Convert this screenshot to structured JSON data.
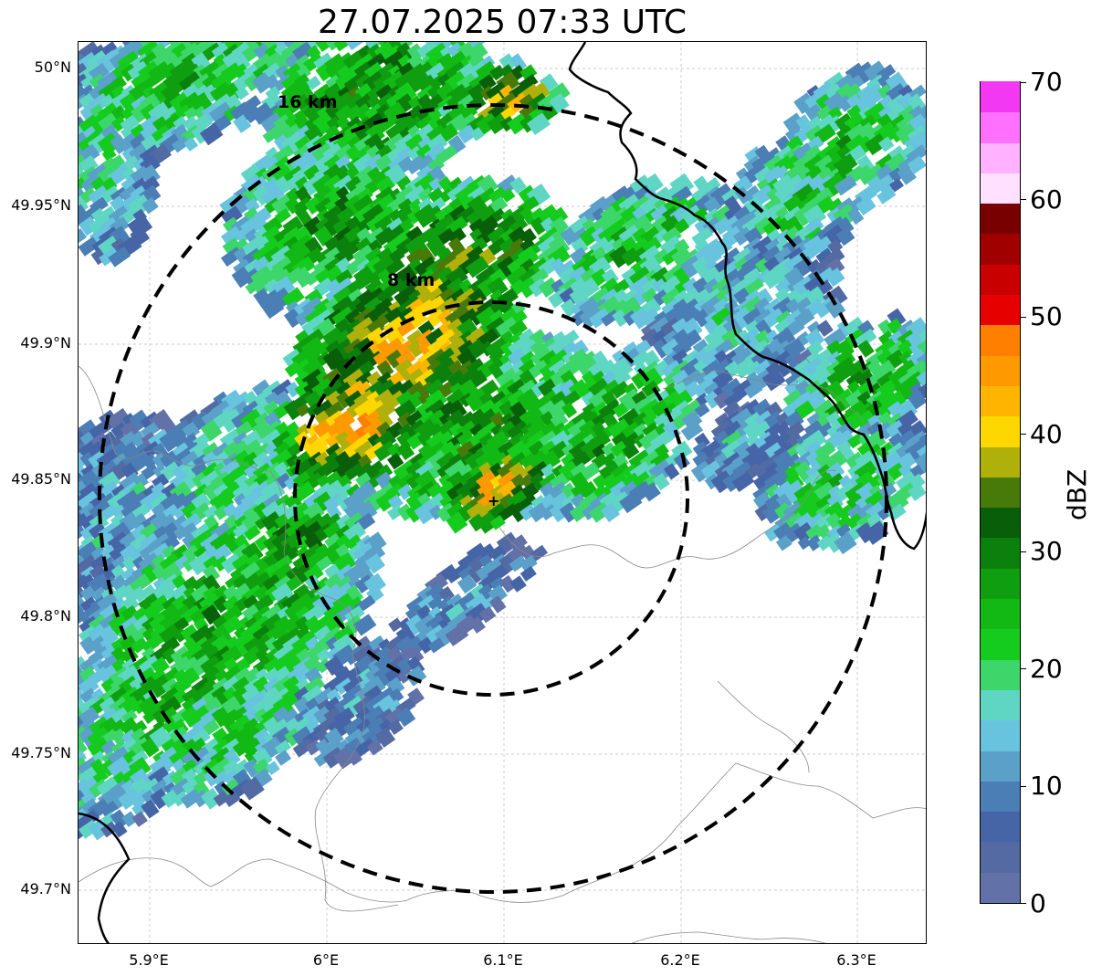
{
  "title": "27.07.2025 07:33 UTC",
  "map": {
    "lat_ticks": [
      "50°N",
      "49.95°N",
      "49.9°N",
      "49.85°N",
      "49.8°N",
      "49.75°N",
      "49.7°N"
    ],
    "lon_ticks": [
      "5.9°E",
      "6°E",
      "6.1°E",
      "6.2°E",
      "6.3°E"
    ],
    "ring_labels": [
      "16 km",
      "8 km"
    ],
    "radar_site": "+",
    "gridlines": true
  },
  "colorbar": {
    "label": "dBZ",
    "tick_labels": [
      "0",
      "10",
      "20",
      "30",
      "40",
      "50",
      "60",
      "70"
    ],
    "colors": [
      "#6271a8",
      "#536aa3",
      "#4665a7",
      "#4a7eb5",
      "#5aa0c8",
      "#67c3de",
      "#5fd6c4",
      "#3dd66a",
      "#15cb1e",
      "#12b814",
      "#0f9e0f",
      "#0c800c",
      "#095f09",
      "#487a0a",
      "#b0b00a",
      "#ffd700",
      "#ffb500",
      "#ff9900",
      "#ff7f00",
      "#e60000",
      "#c80000",
      "#a00000",
      "#780000",
      "#ffe0ff",
      "#ffb2ff",
      "#ff70ff",
      "#f238f2"
    ]
  }
}
